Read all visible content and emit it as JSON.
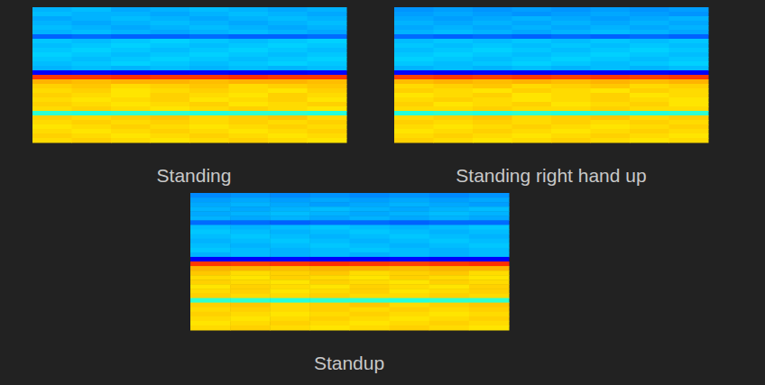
{
  "chart_data": [
    {
      "type": "heatmap",
      "title": "Standing",
      "tick_labels": false,
      "zlim": [
        0,
        100
      ],
      "cells": [
        [
          30,
          31,
          29,
          30,
          31,
          30,
          29,
          30
        ],
        [
          31,
          30,
          30,
          29,
          30,
          31,
          30,
          29
        ],
        [
          29,
          30,
          31,
          30,
          29,
          30,
          31,
          30
        ],
        [
          30,
          29,
          30,
          31,
          30,
          29,
          30,
          31
        ],
        [
          31,
          30,
          29,
          30,
          31,
          30,
          29,
          30
        ],
        [
          30,
          31,
          30,
          29,
          30,
          31,
          30,
          29
        ],
        [
          22,
          23,
          22,
          22,
          23,
          22,
          22,
          23
        ],
        [
          32,
          31,
          32,
          33,
          32,
          31,
          32,
          33
        ],
        [
          31,
          32,
          33,
          32,
          31,
          32,
          33,
          32
        ],
        [
          32,
          33,
          32,
          31,
          32,
          33,
          32,
          31
        ],
        [
          33,
          32,
          31,
          32,
          33,
          32,
          31,
          32
        ],
        [
          32,
          31,
          32,
          33,
          32,
          31,
          32,
          33
        ],
        [
          31,
          32,
          33,
          32,
          31,
          32,
          33,
          32
        ],
        [
          30,
          31,
          30,
          31,
          30,
          31,
          30,
          31
        ],
        [
          12,
          13,
          12,
          12,
          13,
          12,
          12,
          13
        ],
        [
          82,
          82,
          83,
          82,
          82,
          83,
          82,
          82
        ],
        [
          70,
          69,
          70,
          70,
          69,
          70,
          70,
          69
        ],
        [
          67,
          68,
          66,
          67,
          68,
          66,
          67,
          68
        ],
        [
          66,
          67,
          65,
          66,
          67,
          66,
          65,
          67
        ],
        [
          67,
          66,
          65,
          67,
          66,
          65,
          67,
          66
        ],
        [
          66,
          65,
          66,
          67,
          65,
          66,
          67,
          65
        ],
        [
          67,
          66,
          65,
          66,
          67,
          65,
          66,
          67
        ],
        [
          66,
          67,
          66,
          65,
          66,
          67,
          66,
          65
        ],
        [
          42,
          41,
          42,
          42,
          41,
          42,
          42,
          41
        ],
        [
          67,
          66,
          67,
          68,
          66,
          67,
          68,
          66
        ],
        [
          66,
          67,
          66,
          67,
          66,
          67,
          66,
          67
        ],
        [
          65,
          66,
          67,
          66,
          65,
          66,
          67,
          66
        ],
        [
          66,
          65,
          66,
          67,
          66,
          65,
          66,
          67
        ],
        [
          67,
          66,
          65,
          66,
          67,
          66,
          65,
          66
        ],
        [
          66,
          67,
          66,
          65,
          66,
          67,
          66,
          65
        ]
      ]
    },
    {
      "type": "heatmap",
      "title": "Standing right hand up",
      "tick_labels": false,
      "zlim": [
        0,
        100
      ],
      "cells": [
        [
          27,
          28,
          27,
          28,
          27,
          28,
          27,
          28
        ],
        [
          28,
          29,
          28,
          27,
          28,
          29,
          28,
          27
        ],
        [
          29,
          28,
          29,
          30,
          29,
          28,
          29,
          30
        ],
        [
          30,
          29,
          30,
          29,
          30,
          29,
          30,
          29
        ],
        [
          29,
          30,
          29,
          30,
          29,
          30,
          29,
          30
        ],
        [
          30,
          31,
          30,
          29,
          30,
          31,
          30,
          29
        ],
        [
          23,
          22,
          23,
          22,
          23,
          22,
          23,
          22
        ],
        [
          31,
          32,
          31,
          32,
          31,
          32,
          31,
          32
        ],
        [
          32,
          31,
          32,
          31,
          32,
          31,
          32,
          31
        ],
        [
          31,
          32,
          33,
          32,
          31,
          32,
          33,
          32
        ],
        [
          32,
          33,
          32,
          31,
          32,
          33,
          32,
          31
        ],
        [
          33,
          32,
          31,
          32,
          33,
          32,
          31,
          32
        ],
        [
          32,
          31,
          32,
          33,
          32,
          31,
          32,
          33
        ],
        [
          30,
          31,
          30,
          31,
          30,
          31,
          30,
          31
        ],
        [
          13,
          12,
          13,
          12,
          13,
          12,
          13,
          12
        ],
        [
          81,
          82,
          81,
          82,
          81,
          82,
          81,
          82
        ],
        [
          69,
          70,
          69,
          70,
          69,
          70,
          69,
          70
        ],
        [
          66,
          67,
          68,
          66,
          67,
          68,
          66,
          67
        ],
        [
          67,
          66,
          65,
          67,
          66,
          65,
          67,
          66
        ],
        [
          65,
          66,
          67,
          65,
          66,
          67,
          65,
          66
        ],
        [
          66,
          67,
          66,
          65,
          66,
          67,
          66,
          65
        ],
        [
          67,
          65,
          66,
          67,
          65,
          66,
          67,
          65
        ],
        [
          66,
          66,
          67,
          66,
          66,
          67,
          66,
          66
        ],
        [
          41,
          42,
          41,
          42,
          41,
          42,
          41,
          42
        ],
        [
          66,
          67,
          68,
          66,
          67,
          68,
          66,
          67
        ],
        [
          67,
          66,
          67,
          66,
          67,
          66,
          67,
          66
        ],
        [
          66,
          65,
          66,
          67,
          66,
          65,
          66,
          67
        ],
        [
          65,
          66,
          67,
          66,
          65,
          66,
          67,
          66
        ],
        [
          66,
          67,
          66,
          65,
          66,
          67,
          66,
          65
        ],
        [
          67,
          66,
          65,
          66,
          67,
          66,
          65,
          66
        ]
      ]
    },
    {
      "type": "heatmap",
      "title": "Standup",
      "tick_labels": false,
      "zlim": [
        0,
        100
      ],
      "cells": [
        [
          26,
          27,
          26,
          27,
          26,
          27,
          26,
          27
        ],
        [
          28,
          29,
          28,
          29,
          28,
          29,
          28,
          29
        ],
        [
          29,
          30,
          29,
          28,
          29,
          30,
          29,
          28
        ],
        [
          30,
          29,
          30,
          31,
          30,
          29,
          30,
          31
        ],
        [
          29,
          30,
          31,
          30,
          29,
          30,
          31,
          30
        ],
        [
          30,
          29,
          30,
          29,
          30,
          29,
          30,
          29
        ],
        [
          23,
          23,
          22,
          23,
          23,
          22,
          23,
          23
        ],
        [
          31,
          30,
          31,
          32,
          31,
          30,
          31,
          32
        ],
        [
          32,
          31,
          30,
          31,
          32,
          31,
          30,
          31
        ],
        [
          31,
          32,
          31,
          30,
          31,
          32,
          31,
          30
        ],
        [
          30,
          31,
          32,
          31,
          30,
          31,
          32,
          31
        ],
        [
          31,
          30,
          31,
          32,
          31,
          30,
          31,
          32
        ],
        [
          32,
          31,
          30,
          31,
          32,
          31,
          30,
          31
        ],
        [
          30,
          31,
          30,
          31,
          30,
          31,
          30,
          31
        ],
        [
          12,
          12,
          13,
          12,
          12,
          13,
          12,
          12
        ],
        [
          82,
          81,
          82,
          83,
          82,
          81,
          82,
          83
        ],
        [
          70,
          70,
          69,
          70,
          70,
          69,
          70,
          70
        ],
        [
          68,
          66,
          67,
          68,
          66,
          67,
          68,
          66
        ],
        [
          66,
          65,
          67,
          66,
          65,
          67,
          66,
          65
        ],
        [
          67,
          66,
          65,
          67,
          66,
          65,
          67,
          66
        ],
        [
          65,
          67,
          66,
          65,
          67,
          66,
          65,
          67
        ],
        [
          66,
          67,
          65,
          66,
          67,
          65,
          66,
          67
        ],
        [
          67,
          66,
          66,
          67,
          66,
          66,
          67,
          66
        ],
        [
          42,
          42,
          41,
          42,
          42,
          41,
          42,
          42
        ],
        [
          67,
          68,
          66,
          67,
          68,
          66,
          67,
          68
        ],
        [
          66,
          67,
          66,
          67,
          66,
          67,
          66,
          67
        ],
        [
          67,
          66,
          65,
          66,
          67,
          66,
          65,
          66
        ],
        [
          66,
          65,
          66,
          67,
          66,
          65,
          66,
          67
        ],
        [
          65,
          66,
          67,
          66,
          65,
          66,
          67,
          66
        ],
        [
          66,
          67,
          66,
          65,
          66,
          67,
          66,
          65
        ]
      ]
    }
  ]
}
